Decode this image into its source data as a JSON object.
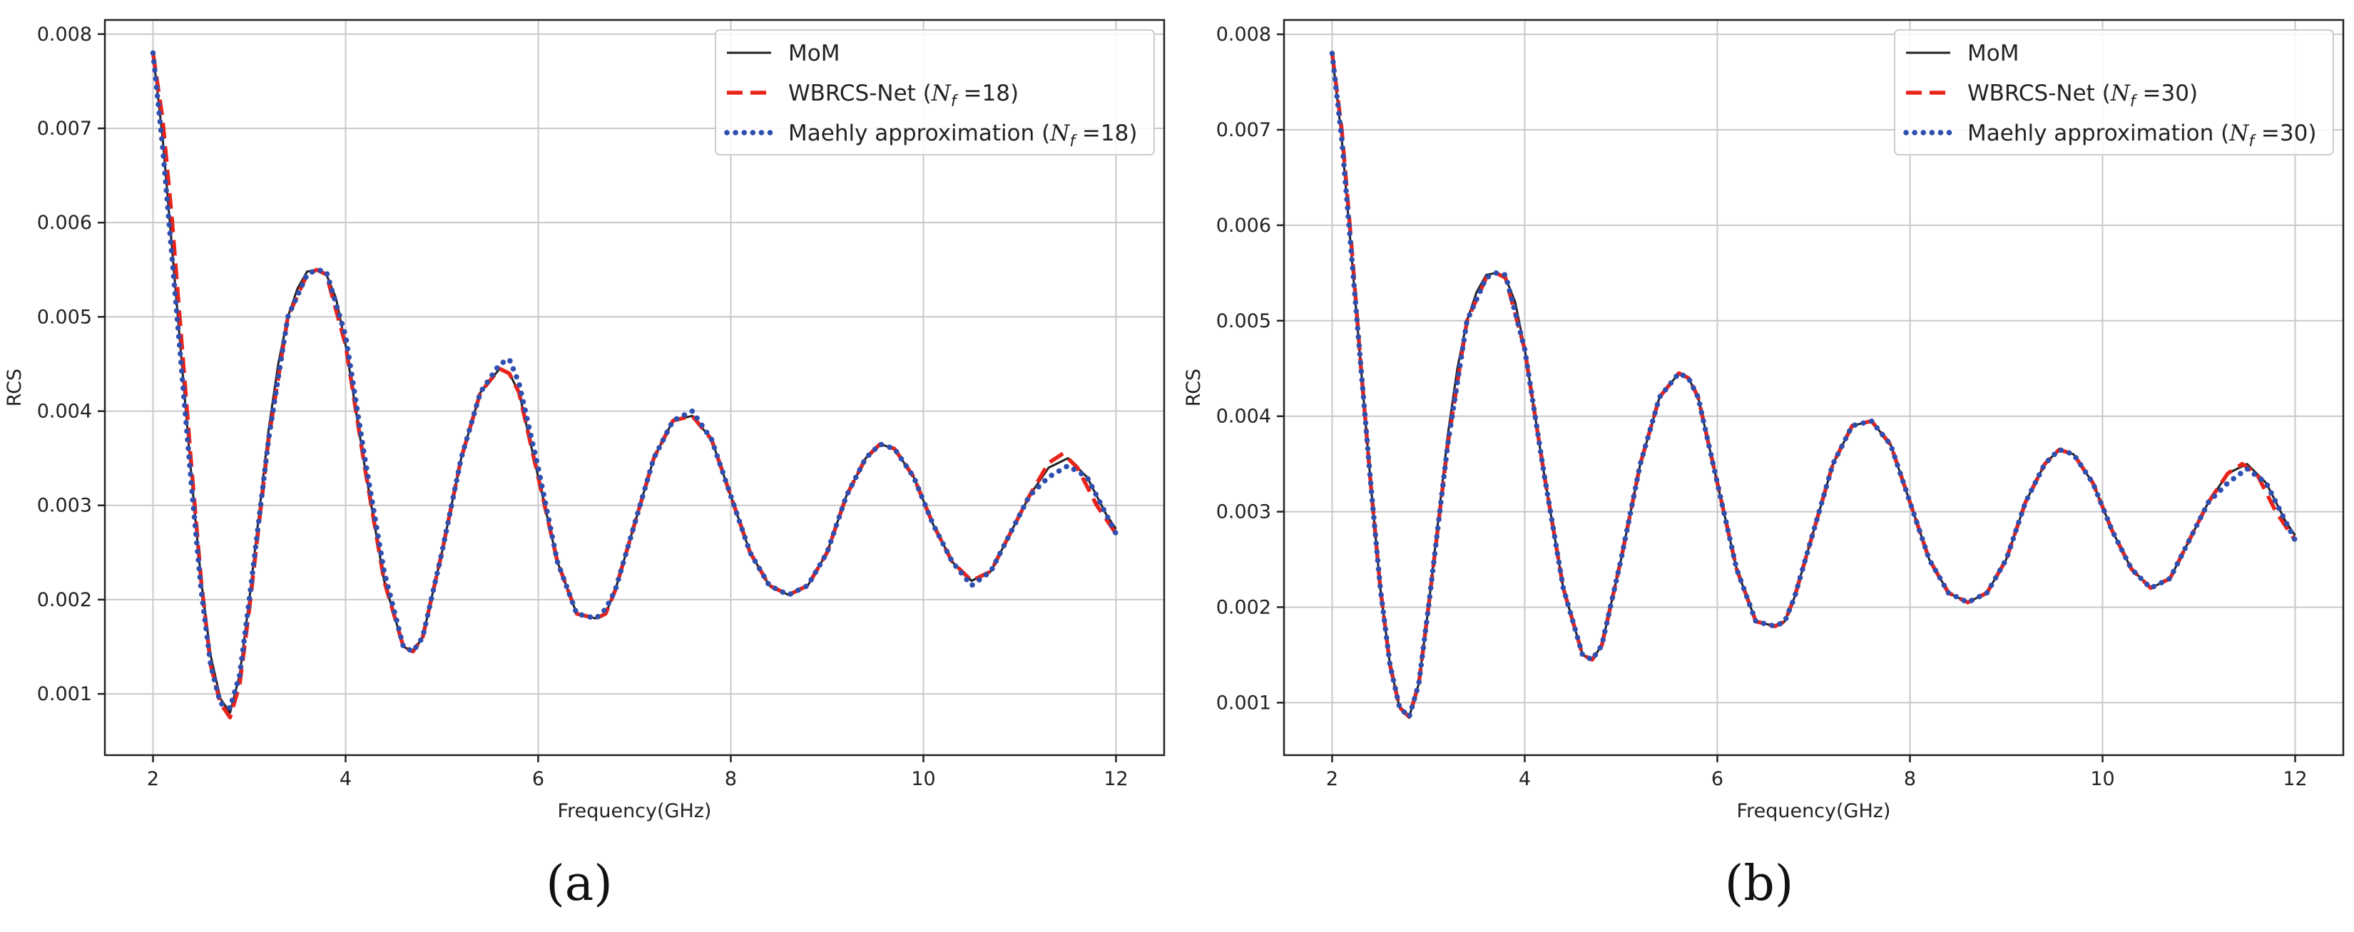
{
  "colors": {
    "mom": "#222222",
    "wbrcs": "#e8231a",
    "maehly": "#2f4fb0",
    "grid": "#c8c8c8",
    "axis": "#222222"
  },
  "captions": [
    "(a)",
    "(b)"
  ],
  "chart_data": [
    {
      "type": "line",
      "xlabel": "Frequency(GHz)",
      "ylabel": "RCS",
      "xlim": [
        1.5,
        12.5
      ],
      "ylim": [
        0.00035,
        0.00815
      ],
      "xticks": [
        2,
        4,
        6,
        8,
        10,
        12
      ],
      "xtick_labels": [
        "2",
        "4",
        "6",
        "8",
        "10",
        "12"
      ],
      "yticks": [
        0.001,
        0.002,
        0.003,
        0.004,
        0.005,
        0.006,
        0.007,
        0.008
      ],
      "ytick_labels": [
        "0.001",
        "0.002",
        "0.003",
        "0.004",
        "0.005",
        "0.006",
        "0.007",
        "0.008"
      ],
      "grid": true,
      "legend_position": "top-right",
      "legend": [
        {
          "label": "MoM",
          "style": "solid"
        },
        {
          "label": "WBRCS-Net (",
          "math": "N",
          "sub": "f",
          "suffix": " =18)",
          "style": "dashed"
        },
        {
          "label": "Maehly approximation (",
          "math": "N",
          "sub": "f",
          "suffix": " =18)",
          "style": "dotted"
        }
      ],
      "series": [
        {
          "name": "MoM",
          "style": "solid",
          "x": [
            2.0,
            2.1,
            2.2,
            2.3,
            2.4,
            2.5,
            2.6,
            2.7,
            2.8,
            2.9,
            3.0,
            3.1,
            3.2,
            3.3,
            3.4,
            3.5,
            3.6,
            3.7,
            3.8,
            3.9,
            4.0,
            4.2,
            4.4,
            4.6,
            4.7,
            4.8,
            5.0,
            5.2,
            5.4,
            5.6,
            5.7,
            5.8,
            6.0,
            6.2,
            6.4,
            6.6,
            6.7,
            6.8,
            7.0,
            7.2,
            7.4,
            7.6,
            7.8,
            8.0,
            8.2,
            8.4,
            8.6,
            8.8,
            9.0,
            9.2,
            9.4,
            9.55,
            9.7,
            9.9,
            10.1,
            10.3,
            10.5,
            10.7,
            10.9,
            11.1,
            11.3,
            11.5,
            11.7,
            11.9,
            12.0
          ],
          "y": [
            0.0078,
            0.0069,
            0.0057,
            0.0045,
            0.0033,
            0.0022,
            0.0014,
            0.00095,
            0.0008,
            0.0012,
            0.002,
            0.0029,
            0.0038,
            0.0045,
            0.005,
            0.0053,
            0.00548,
            0.0055,
            0.00545,
            0.0052,
            0.0047,
            0.0034,
            0.0022,
            0.0015,
            0.00145,
            0.0016,
            0.0025,
            0.0035,
            0.0042,
            0.00445,
            0.0044,
            0.0042,
            0.0033,
            0.0024,
            0.00185,
            0.0018,
            0.00185,
            0.0021,
            0.0028,
            0.0035,
            0.0039,
            0.00395,
            0.0037,
            0.0031,
            0.0025,
            0.00215,
            0.00205,
            0.00215,
            0.0025,
            0.0031,
            0.0035,
            0.00365,
            0.0036,
            0.0033,
            0.0028,
            0.0024,
            0.0022,
            0.0023,
            0.0027,
            0.0031,
            0.0034,
            0.0035,
            0.0033,
            0.0029,
            0.00275
          ]
        },
        {
          "name": "WBRCS-Net (Nf =18)",
          "style": "dashed",
          "x": [
            2.0,
            2.1,
            2.2,
            2.3,
            2.4,
            2.5,
            2.6,
            2.7,
            2.8,
            2.9,
            3.0,
            3.2,
            3.4,
            3.6,
            3.7,
            3.8,
            4.0,
            4.2,
            4.4,
            4.6,
            4.7,
            4.8,
            5.0,
            5.2,
            5.4,
            5.6,
            5.7,
            5.8,
            6.0,
            6.2,
            6.4,
            6.6,
            6.7,
            6.8,
            7.0,
            7.2,
            7.4,
            7.6,
            7.8,
            8.0,
            8.2,
            8.4,
            8.6,
            8.8,
            9.0,
            9.2,
            9.4,
            9.55,
            9.7,
            9.9,
            10.1,
            10.3,
            10.5,
            10.7,
            10.9,
            11.1,
            11.3,
            11.45,
            11.6,
            11.8,
            12.0
          ],
          "y": [
            0.0078,
            0.0071,
            0.006,
            0.0047,
            0.0034,
            0.0022,
            0.0013,
            0.0009,
            0.00075,
            0.0011,
            0.0019,
            0.0037,
            0.005,
            0.00545,
            0.0055,
            0.00545,
            0.0047,
            0.0034,
            0.0022,
            0.0015,
            0.00145,
            0.0016,
            0.0025,
            0.0035,
            0.0042,
            0.00445,
            0.0044,
            0.0042,
            0.0033,
            0.0024,
            0.00185,
            0.0018,
            0.00185,
            0.0021,
            0.0028,
            0.0035,
            0.0039,
            0.00395,
            0.0037,
            0.0031,
            0.0025,
            0.00215,
            0.00205,
            0.00215,
            0.0025,
            0.0031,
            0.0035,
            0.00365,
            0.0036,
            0.0033,
            0.0028,
            0.0024,
            0.0022,
            0.0023,
            0.0027,
            0.0031,
            0.00345,
            0.00355,
            0.0034,
            0.003,
            0.0027
          ]
        },
        {
          "name": "Maehly approximation (Nf =18)",
          "style": "dotted",
          "x": [
            2.0,
            2.1,
            2.2,
            2.3,
            2.4,
            2.5,
            2.6,
            2.7,
            2.8,
            2.9,
            3.0,
            3.2,
            3.4,
            3.6,
            3.7,
            3.8,
            4.0,
            4.2,
            4.4,
            4.6,
            4.7,
            4.8,
            5.0,
            5.2,
            5.4,
            5.6,
            5.7,
            5.8,
            6.0,
            6.2,
            6.4,
            6.6,
            6.7,
            6.8,
            7.0,
            7.2,
            7.4,
            7.6,
            7.8,
            8.0,
            8.2,
            8.4,
            8.6,
            8.8,
            9.0,
            9.2,
            9.4,
            9.55,
            9.7,
            9.9,
            10.1,
            10.3,
            10.5,
            10.7,
            10.9,
            11.1,
            11.3,
            11.5,
            11.7,
            11.9,
            12.0
          ],
          "y": [
            0.0078,
            0.0068,
            0.0056,
            0.0044,
            0.0032,
            0.0021,
            0.0013,
            0.0009,
            0.00085,
            0.0012,
            0.002,
            0.0037,
            0.005,
            0.00545,
            0.0055,
            0.00548,
            0.0048,
            0.0035,
            0.0023,
            0.0015,
            0.00145,
            0.0016,
            0.0025,
            0.0035,
            0.0042,
            0.0045,
            0.00455,
            0.0043,
            0.0034,
            0.0024,
            0.00185,
            0.0018,
            0.0019,
            0.0021,
            0.0028,
            0.0035,
            0.0039,
            0.004,
            0.0037,
            0.0031,
            0.0025,
            0.00215,
            0.00205,
            0.00215,
            0.0025,
            0.0031,
            0.0035,
            0.00365,
            0.0036,
            0.0033,
            0.0028,
            0.0024,
            0.00215,
            0.0023,
            0.0027,
            0.0031,
            0.0033,
            0.00342,
            0.0033,
            0.0029,
            0.0027
          ]
        }
      ]
    },
    {
      "type": "line",
      "xlabel": "Frequency(GHz)",
      "ylabel": "RCS",
      "xlim": [
        1.5,
        12.5
      ],
      "ylim": [
        0.00045,
        0.00815
      ],
      "xticks": [
        2,
        4,
        6,
        8,
        10,
        12
      ],
      "xtick_labels": [
        "2",
        "4",
        "6",
        "8",
        "10",
        "12"
      ],
      "yticks": [
        0.001,
        0.002,
        0.003,
        0.004,
        0.005,
        0.006,
        0.007,
        0.008
      ],
      "ytick_labels": [
        "0.001",
        "0.002",
        "0.003",
        "0.004",
        "0.005",
        "0.006",
        "0.007",
        "0.008"
      ],
      "grid": true,
      "legend_position": "top-right",
      "legend": [
        {
          "label": "MoM",
          "style": "solid"
        },
        {
          "label": "WBRCS-Net (",
          "math": "N",
          "sub": "f",
          "suffix": " =30)",
          "style": "dashed"
        },
        {
          "label": "Maehly approximation (",
          "math": "N",
          "sub": "f",
          "suffix": " =30)",
          "style": "dotted"
        }
      ],
      "series": [
        {
          "name": "MoM",
          "style": "solid",
          "x": [
            2.0,
            2.1,
            2.2,
            2.3,
            2.4,
            2.5,
            2.6,
            2.7,
            2.8,
            2.9,
            3.0,
            3.1,
            3.2,
            3.3,
            3.4,
            3.5,
            3.6,
            3.7,
            3.8,
            3.9,
            4.0,
            4.2,
            4.4,
            4.6,
            4.7,
            4.8,
            5.0,
            5.2,
            5.4,
            5.6,
            5.7,
            5.8,
            6.0,
            6.2,
            6.4,
            6.6,
            6.7,
            6.8,
            7.0,
            7.2,
            7.4,
            7.6,
            7.8,
            8.0,
            8.2,
            8.4,
            8.6,
            8.8,
            9.0,
            9.2,
            9.4,
            9.55,
            9.7,
            9.9,
            10.1,
            10.3,
            10.5,
            10.7,
            10.9,
            11.1,
            11.3,
            11.5,
            11.7,
            11.9,
            12.0
          ],
          "y": [
            0.0078,
            0.0069,
            0.0057,
            0.0045,
            0.0033,
            0.0022,
            0.0014,
            0.00095,
            0.00085,
            0.0012,
            0.002,
            0.0029,
            0.0038,
            0.0045,
            0.005,
            0.0053,
            0.00548,
            0.0055,
            0.00545,
            0.0052,
            0.0047,
            0.0034,
            0.0022,
            0.0015,
            0.00145,
            0.0016,
            0.0025,
            0.0035,
            0.0042,
            0.00445,
            0.0044,
            0.0042,
            0.0033,
            0.0024,
            0.00185,
            0.0018,
            0.00185,
            0.0021,
            0.0028,
            0.0035,
            0.0039,
            0.00395,
            0.0037,
            0.0031,
            0.0025,
            0.00215,
            0.00205,
            0.00215,
            0.0025,
            0.0031,
            0.0035,
            0.00365,
            0.0036,
            0.0033,
            0.0028,
            0.0024,
            0.0022,
            0.0023,
            0.0027,
            0.0031,
            0.0034,
            0.0035,
            0.0033,
            0.0029,
            0.00275
          ]
        },
        {
          "name": "WBRCS-Net (Nf =30)",
          "style": "dashed",
          "x": [
            2.0,
            2.1,
            2.2,
            2.3,
            2.4,
            2.5,
            2.6,
            2.7,
            2.8,
            2.9,
            3.0,
            3.2,
            3.4,
            3.6,
            3.7,
            3.8,
            4.0,
            4.2,
            4.4,
            4.6,
            4.7,
            4.8,
            5.0,
            5.2,
            5.4,
            5.6,
            5.7,
            5.8,
            6.0,
            6.2,
            6.4,
            6.6,
            6.7,
            6.8,
            7.0,
            7.2,
            7.4,
            7.6,
            7.8,
            8.0,
            8.2,
            8.4,
            8.6,
            8.8,
            9.0,
            9.2,
            9.4,
            9.55,
            9.7,
            9.9,
            10.1,
            10.3,
            10.5,
            10.7,
            10.9,
            11.1,
            11.3,
            11.45,
            11.6,
            11.8,
            12.0
          ],
          "y": [
            0.0078,
            0.007,
            0.0058,
            0.0045,
            0.0033,
            0.0022,
            0.0014,
            0.00095,
            0.00085,
            0.0012,
            0.002,
            0.0037,
            0.005,
            0.00545,
            0.0055,
            0.00545,
            0.0047,
            0.0034,
            0.0022,
            0.0015,
            0.00145,
            0.0016,
            0.0025,
            0.0035,
            0.0042,
            0.00445,
            0.0044,
            0.0042,
            0.0033,
            0.0024,
            0.00185,
            0.0018,
            0.00185,
            0.0021,
            0.0028,
            0.0035,
            0.0039,
            0.00395,
            0.0037,
            0.0031,
            0.0025,
            0.00215,
            0.00205,
            0.00215,
            0.0025,
            0.0031,
            0.0035,
            0.00365,
            0.0036,
            0.0033,
            0.0028,
            0.0024,
            0.0022,
            0.0023,
            0.0027,
            0.0031,
            0.0034,
            0.0035,
            0.0034,
            0.003,
            0.0027
          ]
        },
        {
          "name": "Maehly approximation (Nf =30)",
          "style": "dotted",
          "x": [
            2.0,
            2.1,
            2.2,
            2.3,
            2.4,
            2.5,
            2.6,
            2.7,
            2.8,
            2.9,
            3.0,
            3.2,
            3.4,
            3.6,
            3.7,
            3.8,
            4.0,
            4.2,
            4.4,
            4.6,
            4.7,
            4.8,
            5.0,
            5.2,
            5.4,
            5.6,
            5.7,
            5.8,
            6.0,
            6.2,
            6.4,
            6.6,
            6.7,
            6.8,
            7.0,
            7.2,
            7.4,
            7.6,
            7.8,
            8.0,
            8.2,
            8.4,
            8.6,
            8.8,
            9.0,
            9.2,
            9.4,
            9.55,
            9.7,
            9.9,
            10.1,
            10.3,
            10.5,
            10.7,
            10.9,
            11.1,
            11.3,
            11.5,
            11.7,
            11.9,
            12.0
          ],
          "y": [
            0.0078,
            0.0069,
            0.0057,
            0.0045,
            0.0033,
            0.0022,
            0.0014,
            0.00095,
            0.00085,
            0.0012,
            0.002,
            0.0037,
            0.005,
            0.00545,
            0.0055,
            0.00548,
            0.0047,
            0.0034,
            0.0022,
            0.0015,
            0.00145,
            0.0016,
            0.0025,
            0.0035,
            0.0042,
            0.00445,
            0.0044,
            0.0042,
            0.0033,
            0.0024,
            0.00185,
            0.0018,
            0.00185,
            0.0021,
            0.0028,
            0.0035,
            0.0039,
            0.00395,
            0.0037,
            0.0031,
            0.0025,
            0.00215,
            0.00205,
            0.00215,
            0.0025,
            0.0031,
            0.0035,
            0.00365,
            0.0036,
            0.0033,
            0.0028,
            0.0024,
            0.0022,
            0.0023,
            0.0027,
            0.0031,
            0.0033,
            0.00345,
            0.0033,
            0.0029,
            0.0027
          ]
        }
      ]
    }
  ]
}
